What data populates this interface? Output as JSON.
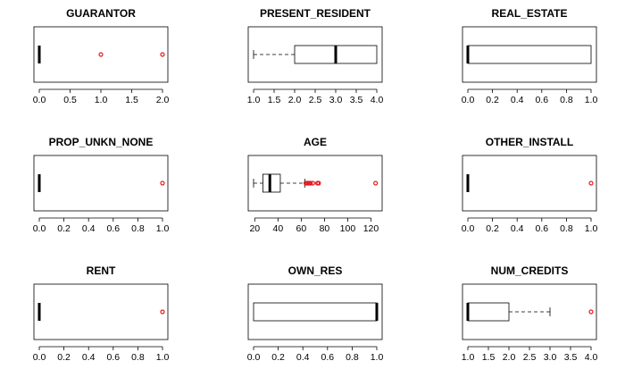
{
  "chart_data": [
    {
      "type": "boxplot",
      "orientation": "horizontal",
      "title": "GUARANTOR",
      "xlim": [
        0,
        2
      ],
      "ticks": [
        "0.0",
        "0.5",
        "1.0",
        "1.5",
        "2.0"
      ],
      "tick_values": [
        0,
        0.5,
        1,
        1.5,
        2
      ],
      "box": {
        "min": 0,
        "q1": 0,
        "median": 0,
        "q3": 0,
        "max": 0
      },
      "outliers": [
        1,
        2
      ]
    },
    {
      "type": "boxplot",
      "orientation": "horizontal",
      "title": "PRESENT_RESIDENT",
      "xlim": [
        1,
        4
      ],
      "ticks": [
        "1.0",
        "1.5",
        "2.0",
        "2.5",
        "3.0",
        "3.5",
        "4.0"
      ],
      "tick_values": [
        1,
        1.5,
        2,
        2.5,
        3,
        3.5,
        4
      ],
      "box": {
        "min": 1,
        "q1": 2,
        "median": 3,
        "q3": 4,
        "max": 4
      },
      "outliers": []
    },
    {
      "type": "boxplot",
      "orientation": "horizontal",
      "title": "REAL_ESTATE",
      "xlim": [
        0,
        1
      ],
      "ticks": [
        "0.0",
        "0.2",
        "0.4",
        "0.6",
        "0.8",
        "1.0"
      ],
      "tick_values": [
        0,
        0.2,
        0.4,
        0.6,
        0.8,
        1
      ],
      "box": {
        "min": 0,
        "q1": 0,
        "median": 0,
        "q3": 1,
        "max": 1
      },
      "outliers": []
    },
    {
      "type": "boxplot",
      "orientation": "horizontal",
      "title": "PROP_UNKN_NONE",
      "xlim": [
        0,
        1
      ],
      "ticks": [
        "0.0",
        "0.2",
        "0.4",
        "0.6",
        "0.8",
        "1.0"
      ],
      "tick_values": [
        0,
        0.2,
        0.4,
        0.6,
        0.8,
        1
      ],
      "box": {
        "min": 0,
        "q1": 0,
        "median": 0,
        "q3": 0,
        "max": 0
      },
      "outliers": [
        1
      ]
    },
    {
      "type": "boxplot",
      "orientation": "horizontal",
      "title": "AGE",
      "xlim": [
        19,
        125
      ],
      "ticks": [
        "20",
        "40",
        "60",
        "80",
        "100",
        "120"
      ],
      "tick_values": [
        20,
        40,
        60,
        80,
        100,
        120
      ],
      "box": {
        "min": 19,
        "q1": 27,
        "median": 33,
        "q3": 42,
        "max": 63
      },
      "outliers": [
        64,
        65,
        66,
        67,
        68,
        70,
        74,
        75,
        124
      ]
    },
    {
      "type": "boxplot",
      "orientation": "horizontal",
      "title": "OTHER_INSTALL",
      "xlim": [
        0,
        1
      ],
      "ticks": [
        "0.0",
        "0.2",
        "0.4",
        "0.6",
        "0.8",
        "1.0"
      ],
      "tick_values": [
        0,
        0.2,
        0.4,
        0.6,
        0.8,
        1
      ],
      "box": {
        "min": 0,
        "q1": 0,
        "median": 0,
        "q3": 0,
        "max": 0
      },
      "outliers": [
        1
      ]
    },
    {
      "type": "boxplot",
      "orientation": "horizontal",
      "title": "RENT",
      "xlim": [
        0,
        1
      ],
      "ticks": [
        "0.0",
        "0.2",
        "0.4",
        "0.6",
        "0.8",
        "1.0"
      ],
      "tick_values": [
        0,
        0.2,
        0.4,
        0.6,
        0.8,
        1
      ],
      "box": {
        "min": 0,
        "q1": 0,
        "median": 0,
        "q3": 0,
        "max": 0
      },
      "outliers": [
        1
      ]
    },
    {
      "type": "boxplot",
      "orientation": "horizontal",
      "title": "OWN_RES",
      "xlim": [
        0,
        1
      ],
      "ticks": [
        "0.0",
        "0.2",
        "0.4",
        "0.6",
        "0.8",
        "1.0"
      ],
      "tick_values": [
        0,
        0.2,
        0.4,
        0.6,
        0.8,
        1
      ],
      "box": {
        "min": 0,
        "q1": 0,
        "median": 1,
        "q3": 1,
        "max": 1
      },
      "outliers": []
    },
    {
      "type": "boxplot",
      "orientation": "horizontal",
      "title": "NUM_CREDITS",
      "xlim": [
        1,
        4
      ],
      "ticks": [
        "1.0",
        "1.5",
        "2.0",
        "2.5",
        "3.0",
        "3.5",
        "4.0"
      ],
      "tick_values": [
        1,
        1.5,
        2,
        2.5,
        3,
        3.5,
        4
      ],
      "box": {
        "min": 1,
        "q1": 1,
        "median": 1,
        "q3": 2,
        "max": 3
      },
      "outliers": [
        4
      ]
    }
  ],
  "colors": {
    "box_outline": "#000000",
    "outlier": "#e31a1c",
    "axis": "#000000"
  }
}
